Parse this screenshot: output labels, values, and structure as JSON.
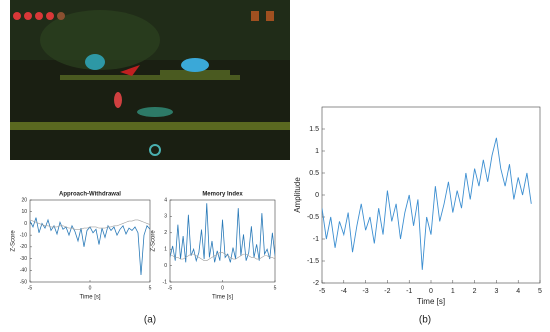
{
  "captions": [
    "(a)",
    "(b)"
  ],
  "chart_data": [
    {
      "type": "line",
      "title": "Approach-Withdrawal",
      "x_label": "Time [s]",
      "y_label": "Z-Score",
      "x": [
        -5,
        -4.75,
        -4.5,
        -4.25,
        -4,
        -3.75,
        -3.5,
        -3.25,
        -3,
        -2.75,
        -2.5,
        -2.25,
        -2,
        -1.75,
        -1.5,
        -1.25,
        -1,
        -0.75,
        -0.5,
        -0.25,
        0,
        0.25,
        0.5,
        0.75,
        1,
        1.25,
        1.5,
        1.75,
        2,
        2.25,
        2.5,
        2.75,
        3,
        3.25,
        3.5,
        3.75,
        4,
        4.25,
        4.5,
        4.75,
        5
      ],
      "series": [
        {
          "color": "#2a7ab8",
          "values": [
            2,
            -3,
            5,
            -8,
            0,
            -4,
            3,
            -6,
            -2,
            -9,
            1,
            -5,
            -3,
            -10,
            -2,
            -7,
            -15,
            -4,
            -20,
            -6,
            -3,
            -8,
            -5,
            -18,
            -4,
            -12,
            -2,
            -6,
            -3,
            -10,
            -5,
            -2,
            -9,
            -4,
            -6,
            -3,
            -8,
            -44,
            -10,
            -2,
            -5
          ]
        },
        {
          "color": "#a0a0a0",
          "values": [
            3,
            2,
            1,
            0,
            -1,
            -2,
            -2,
            -3,
            -3,
            -3,
            -2,
            -2,
            -3,
            -4,
            -4,
            -5,
            -5,
            -5,
            -4,
            -4,
            -3,
            -3,
            -3,
            -4,
            -4,
            -4,
            -3,
            -3,
            -2,
            -2,
            -1,
            0,
            1,
            2,
            2,
            3,
            3,
            2,
            1,
            0,
            -1
          ]
        }
      ],
      "xlim": [
        -5,
        5
      ],
      "xticks": [
        -5,
        0,
        5
      ],
      "ylim": [
        -50,
        20
      ],
      "yticks": [
        -50,
        -40,
        -30,
        -20,
        -10,
        0,
        10,
        20
      ]
    },
    {
      "type": "line",
      "title": "Memory Index",
      "x_label": "Time [s]",
      "y_label": "Z-Score",
      "x": [
        -5,
        -4.75,
        -4.5,
        -4.25,
        -4,
        -3.75,
        -3.5,
        -3.25,
        -3,
        -2.75,
        -2.5,
        -2.25,
        -2,
        -1.75,
        -1.5,
        -1.25,
        -1,
        -0.75,
        -0.5,
        -0.25,
        0,
        0.25,
        0.5,
        0.75,
        1,
        1.25,
        1.5,
        1.75,
        2,
        2.25,
        2.5,
        2.75,
        3,
        3.25,
        3.5,
        3.75,
        4,
        4.25,
        4.5,
        4.75,
        5
      ],
      "series": [
        {
          "color": "#2a7ab8",
          "values": [
            0.5,
            1.2,
            0.3,
            2.5,
            0.4,
            1.8,
            0.2,
            3.1,
            0.6,
            1.0,
            0.3,
            0.8,
            2.2,
            0.4,
            3.8,
            0.5,
            1.5,
            0.2,
            0.9,
            0.3,
            2.8,
            0.5,
            0.7,
            0.2,
            1.1,
            0.4,
            3.5,
            0.6,
            1.9,
            0.3,
            0.8,
            2.4,
            0.5,
            1.3,
            0.3,
            3.2,
            0.7,
            1.0,
            0.4,
            2.0,
            0.6
          ]
        },
        {
          "color": "#a0a0a0",
          "values": [
            0.6,
            0.6,
            0.5,
            0.5,
            0.4,
            0.4,
            0.5,
            0.6,
            0.7,
            0.7,
            0.6,
            0.5,
            0.4,
            0.3,
            0.3,
            0.4,
            0.5,
            0.6,
            0.7,
            0.8,
            0.8,
            0.7,
            0.6,
            0.5,
            0.4,
            0.4,
            0.5,
            0.6,
            0.7,
            0.7,
            0.6,
            0.5,
            0.5,
            0.4,
            0.4,
            0.5,
            0.6,
            0.6,
            0.5,
            0.5,
            0.4
          ]
        }
      ],
      "xlim": [
        -5,
        5
      ],
      "xticks": [
        -5,
        0,
        5
      ],
      "ylim": [
        -1,
        4
      ],
      "yticks": [
        -1,
        0,
        1,
        2,
        3,
        4
      ]
    },
    {
      "type": "line",
      "x_label": "Time [s]",
      "y_label": "Amplitude",
      "x": [
        -5,
        -4.8,
        -4.6,
        -4.4,
        -4.2,
        -4,
        -3.8,
        -3.6,
        -3.4,
        -3.2,
        -3,
        -2.8,
        -2.6,
        -2.4,
        -2.2,
        -2,
        -1.8,
        -1.6,
        -1.4,
        -1.2,
        -1,
        -0.8,
        -0.6,
        -0.4,
        -0.2,
        0,
        0.2,
        0.4,
        0.6,
        0.8,
        1,
        1.2,
        1.4,
        1.6,
        1.8,
        2,
        2.2,
        2.4,
        2.6,
        2.8,
        3,
        3.2,
        3.4,
        3.6,
        3.8,
        4,
        4.2,
        4.4,
        4.6
      ],
      "series": [
        {
          "color": "#3d8fd1",
          "values": [
            -0.3,
            -1.0,
            -0.5,
            -1.2,
            -0.6,
            -0.9,
            -0.4,
            -1.3,
            -0.7,
            -0.2,
            -0.8,
            -0.5,
            -1.1,
            -0.3,
            -0.9,
            0.1,
            -0.6,
            -0.2,
            -1.0,
            -0.4,
            0.0,
            -0.7,
            -0.1,
            -1.7,
            -0.5,
            -0.9,
            0.2,
            -0.6,
            -0.2,
            0.3,
            -0.4,
            0.1,
            -0.3,
            0.5,
            -0.1,
            0.6,
            0.2,
            0.8,
            0.3,
            0.9,
            1.3,
            0.6,
            0.2,
            0.7,
            -0.1,
            0.4,
            0.0,
            0.5,
            -0.2
          ]
        }
      ],
      "xlim": [
        -5,
        5
      ],
      "xticks": [
        -5,
        -4,
        -3,
        -2,
        -1,
        0,
        1,
        2,
        3,
        4,
        5
      ],
      "ylim": [
        -2,
        2
      ],
      "yticks": [
        -2,
        -1.5,
        -1,
        -0.5,
        0,
        0.5,
        1,
        1.5
      ]
    }
  ]
}
